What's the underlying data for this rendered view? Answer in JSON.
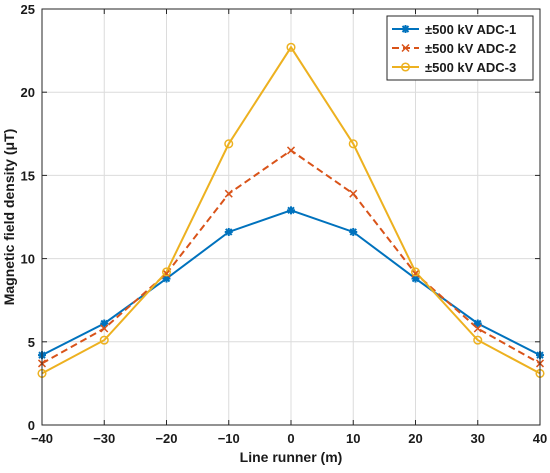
{
  "chart_data": {
    "type": "line",
    "title": "",
    "xlabel": "Line runner (m)",
    "ylabel": "Magnetic field density (μT)",
    "xlim": [
      -40,
      40
    ],
    "ylim": [
      0,
      25
    ],
    "xticks": [
      -40,
      -30,
      -20,
      -10,
      0,
      10,
      20,
      30,
      40
    ],
    "yticks": [
      0,
      5,
      10,
      15,
      20,
      25
    ],
    "xtick_labels": [
      "−40",
      "−30",
      "−20",
      "−10",
      "0",
      "10",
      "20",
      "30",
      "40"
    ],
    "ytick_labels": [
      "0",
      "5",
      "10",
      "15",
      "20",
      "25"
    ],
    "grid": true,
    "legend_position": "top-right",
    "x": [
      -40,
      -30,
      -20,
      -10,
      0,
      10,
      20,
      30,
      40
    ],
    "series": [
      {
        "name": "±500 kV ADC-1",
        "values": [
          4.2,
          6.1,
          8.8,
          11.6,
          12.9,
          11.6,
          8.8,
          6.1,
          4.2
        ],
        "color": "#0072BD",
        "line_style": "solid",
        "marker": "asterisk"
      },
      {
        "name": "±500 kV ADC-2",
        "values": [
          3.7,
          5.8,
          9.1,
          13.9,
          16.5,
          13.9,
          9.1,
          5.8,
          3.7
        ],
        "color": "#D95319",
        "line_style": "dashed",
        "marker": "x"
      },
      {
        "name": "±500 kV ADC-3",
        "values": [
          3.1,
          5.1,
          9.2,
          16.9,
          22.7,
          16.9,
          9.2,
          5.1,
          3.1
        ],
        "color": "#EDB120",
        "line_style": "solid",
        "marker": "circle"
      }
    ]
  }
}
